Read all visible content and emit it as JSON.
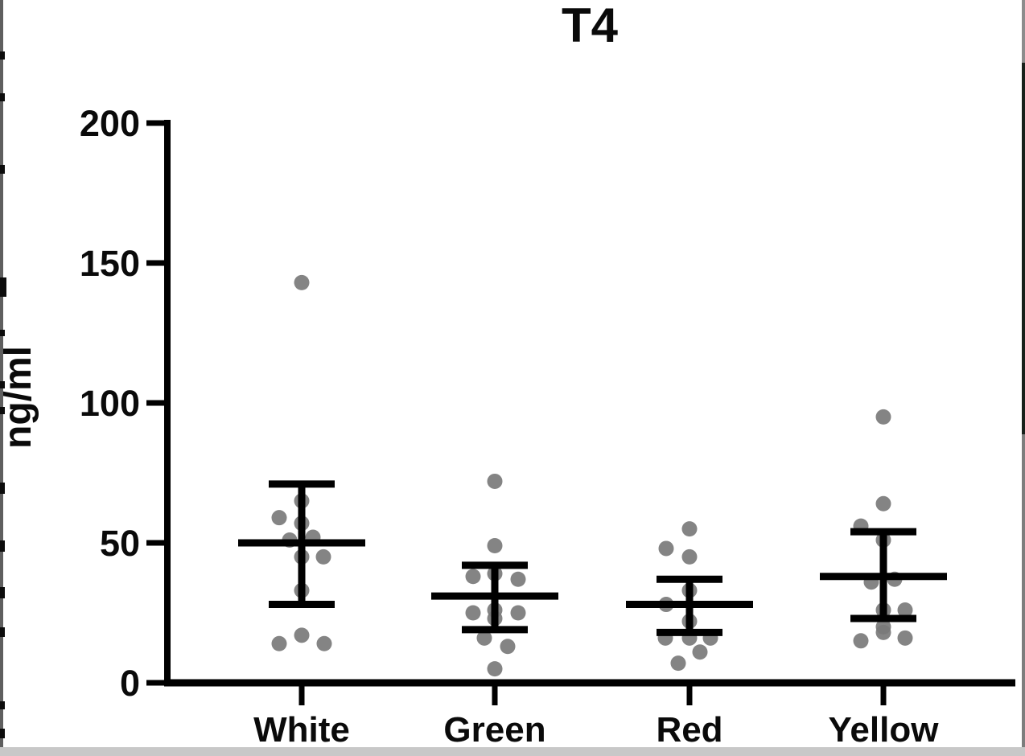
{
  "chart_data": {
    "type": "scatter",
    "title": "T4",
    "ylabel": "ng/ml",
    "xlabel": "",
    "ylim": [
      0,
      200
    ],
    "yticks": [
      0,
      50,
      100,
      150,
      200
    ],
    "grid": false,
    "legend": "none",
    "categories": [
      "White",
      "Green",
      "Red",
      "Yellow"
    ],
    "error_bar_style": "center line with whiskers and caps",
    "dot_color": "#7a7a7a",
    "axis_color": "#000000",
    "units": "ng/ml",
    "series": [
      {
        "name": "White",
        "mean": 50,
        "err_low": 28,
        "err_high": 71,
        "points": [
          {
            "v": 143,
            "dx": 0
          },
          {
            "v": 65,
            "dx": 0
          },
          {
            "v": 59,
            "dx": -28
          },
          {
            "v": 57,
            "dx": 0
          },
          {
            "v": 52,
            "dx": 14
          },
          {
            "v": 51,
            "dx": -15
          },
          {
            "v": 45,
            "dx": 27
          },
          {
            "v": 45,
            "dx": 0
          },
          {
            "v": 33,
            "dx": 0
          },
          {
            "v": 17,
            "dx": 0
          },
          {
            "v": 14,
            "dx": 28
          },
          {
            "v": 14,
            "dx": -28
          }
        ]
      },
      {
        "name": "Green",
        "mean": 31,
        "err_low": 19,
        "err_high": 42,
        "points": [
          {
            "v": 72,
            "dx": 0
          },
          {
            "v": 49,
            "dx": 0
          },
          {
            "v": 39,
            "dx": 0
          },
          {
            "v": 38,
            "dx": -27
          },
          {
            "v": 37,
            "dx": 29
          },
          {
            "v": 26,
            "dx": 0
          },
          {
            "v": 25,
            "dx": -27
          },
          {
            "v": 25,
            "dx": 29
          },
          {
            "v": 23,
            "dx": 0
          },
          {
            "v": 16,
            "dx": -13
          },
          {
            "v": 13,
            "dx": 16
          },
          {
            "v": 5,
            "dx": 0
          }
        ]
      },
      {
        "name": "Red",
        "mean": 28,
        "err_low": 18,
        "err_high": 37,
        "points": [
          {
            "v": 55,
            "dx": 0
          },
          {
            "v": 48,
            "dx": -29
          },
          {
            "v": 45,
            "dx": 0
          },
          {
            "v": 33,
            "dx": 0
          },
          {
            "v": 28,
            "dx": -29
          },
          {
            "v": 22,
            "dx": 0
          },
          {
            "v": 16,
            "dx": -30
          },
          {
            "v": 16,
            "dx": 0
          },
          {
            "v": 16,
            "dx": 26
          },
          {
            "v": 11,
            "dx": 13
          },
          {
            "v": 7,
            "dx": -14
          }
        ]
      },
      {
        "name": "Yellow",
        "mean": 38,
        "err_low": 23,
        "err_high": 54,
        "points": [
          {
            "v": 95,
            "dx": 0
          },
          {
            "v": 64,
            "dx": 0
          },
          {
            "v": 56,
            "dx": -28
          },
          {
            "v": 51,
            "dx": 0
          },
          {
            "v": 37,
            "dx": 14
          },
          {
            "v": 36,
            "dx": -15
          },
          {
            "v": 26,
            "dx": 27
          },
          {
            "v": 26,
            "dx": 0
          },
          {
            "v": 20,
            "dx": 0
          },
          {
            "v": 18,
            "dx": 0
          },
          {
            "v": 16,
            "dx": 27
          },
          {
            "v": 15,
            "dx": -28
          }
        ]
      }
    ]
  }
}
